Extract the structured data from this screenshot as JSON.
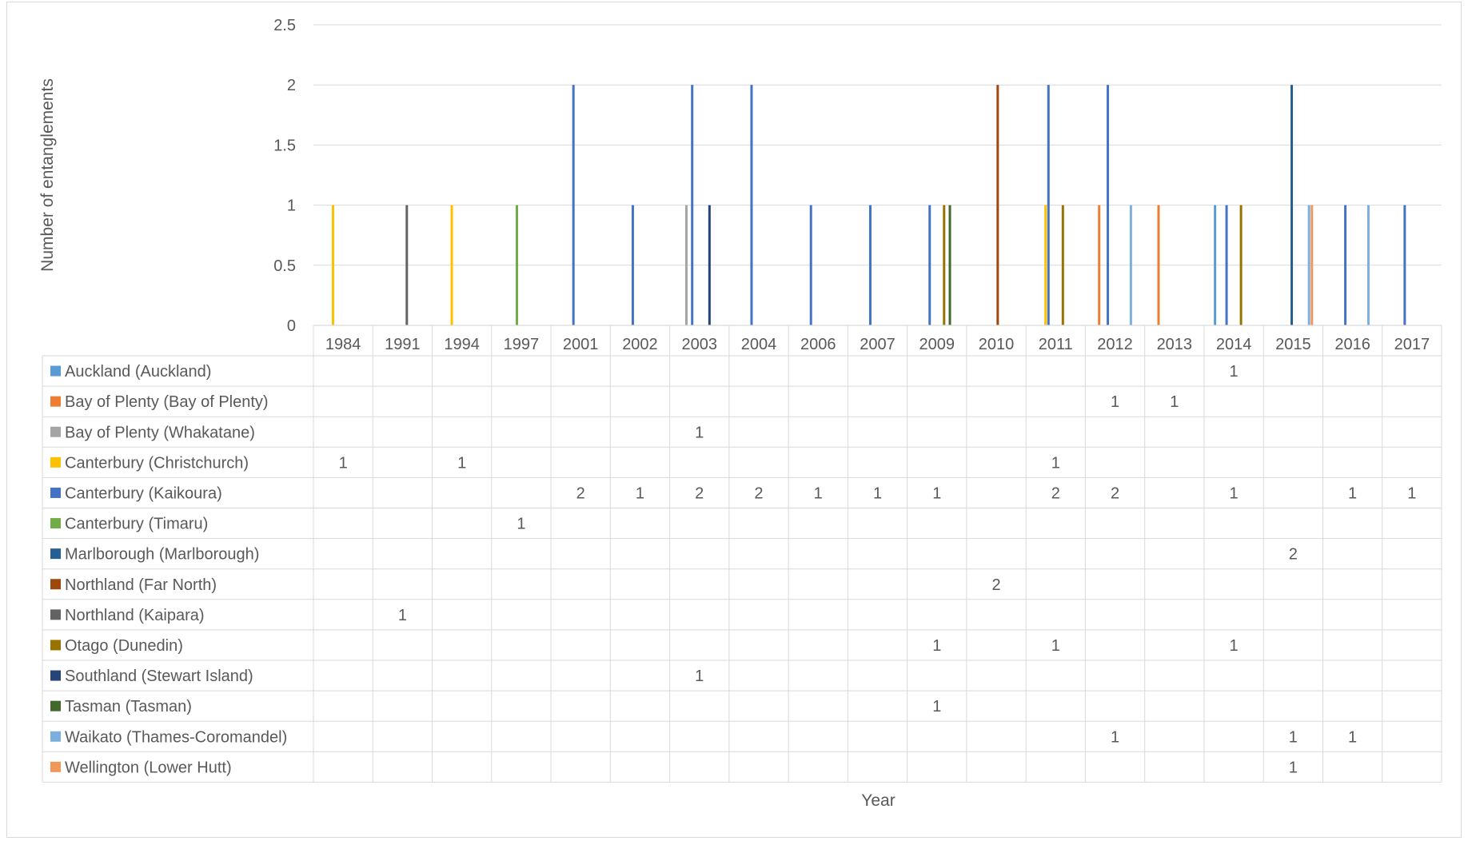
{
  "chart_data": {
    "type": "bar",
    "title": "",
    "xlabel": "Year",
    "ylabel": "Number of entanglements",
    "ylim": [
      0,
      2.5
    ],
    "yticks": [
      "0",
      "0.5",
      "1",
      "1.5",
      "2",
      "2.5"
    ],
    "grid": true,
    "legend": "data-table-below",
    "categories": [
      "1984",
      "1991",
      "1994",
      "1997",
      "2001",
      "2002",
      "2003",
      "2004",
      "2006",
      "2007",
      "2009",
      "2010",
      "2011",
      "2012",
      "2013",
      "2014",
      "2015",
      "2016",
      "2017"
    ],
    "series": [
      {
        "name": "Auckland (Auckland)",
        "color": "#5b9bd5",
        "values": [
          null,
          null,
          null,
          null,
          null,
          null,
          null,
          null,
          null,
          null,
          null,
          null,
          null,
          null,
          null,
          1,
          null,
          null,
          null
        ]
      },
      {
        "name": "Bay of Plenty (Bay of Plenty)",
        "color": "#ed7d31",
        "values": [
          null,
          null,
          null,
          null,
          null,
          null,
          null,
          null,
          null,
          null,
          null,
          null,
          null,
          1,
          1,
          null,
          null,
          null,
          null
        ]
      },
      {
        "name": "Bay of Plenty (Whakatane)",
        "color": "#a5a5a5",
        "values": [
          null,
          null,
          null,
          null,
          null,
          null,
          1,
          null,
          null,
          null,
          null,
          null,
          null,
          null,
          null,
          null,
          null,
          null,
          null
        ]
      },
      {
        "name": "Canterbury (Christchurch)",
        "color": "#ffc000",
        "values": [
          1,
          null,
          1,
          null,
          null,
          null,
          null,
          null,
          null,
          null,
          null,
          null,
          1,
          null,
          null,
          null,
          null,
          null,
          null
        ]
      },
      {
        "name": "Canterbury (Kaikoura)",
        "color": "#4472c4",
        "values": [
          null,
          null,
          null,
          null,
          2,
          1,
          2,
          2,
          1,
          1,
          1,
          null,
          2,
          2,
          null,
          1,
          null,
          1,
          1
        ]
      },
      {
        "name": "Canterbury (Timaru)",
        "color": "#70ad47",
        "values": [
          null,
          null,
          null,
          1,
          null,
          null,
          null,
          null,
          null,
          null,
          null,
          null,
          null,
          null,
          null,
          null,
          null,
          null,
          null
        ]
      },
      {
        "name": "Marlborough (Marlborough)",
        "color": "#255e91",
        "values": [
          null,
          null,
          null,
          null,
          null,
          null,
          null,
          null,
          null,
          null,
          null,
          null,
          null,
          null,
          null,
          null,
          2,
          null,
          null
        ]
      },
      {
        "name": "Northland (Far North)",
        "color": "#9e480e",
        "values": [
          null,
          null,
          null,
          null,
          null,
          null,
          null,
          null,
          null,
          null,
          null,
          2,
          null,
          null,
          null,
          null,
          null,
          null,
          null
        ]
      },
      {
        "name": "Northland (Kaipara)",
        "color": "#636363",
        "values": [
          null,
          1,
          null,
          null,
          null,
          null,
          null,
          null,
          null,
          null,
          null,
          null,
          null,
          null,
          null,
          null,
          null,
          null,
          null
        ]
      },
      {
        "name": "Otago (Dunedin)",
        "color": "#997300",
        "values": [
          null,
          null,
          null,
          null,
          null,
          null,
          null,
          null,
          null,
          null,
          1,
          null,
          1,
          null,
          null,
          1,
          null,
          null,
          null
        ]
      },
      {
        "name": "Southland (Stewart Island)",
        "color": "#264478",
        "values": [
          null,
          null,
          null,
          null,
          null,
          null,
          1,
          null,
          null,
          null,
          null,
          null,
          null,
          null,
          null,
          null,
          null,
          null,
          null
        ]
      },
      {
        "name": "Tasman (Tasman)",
        "color": "#43682b",
        "values": [
          null,
          null,
          null,
          null,
          null,
          null,
          null,
          null,
          null,
          null,
          1,
          null,
          null,
          null,
          null,
          null,
          null,
          null,
          null
        ]
      },
      {
        "name": "Waikato (Thames-Coromandel)",
        "color": "#7cafdd",
        "values": [
          null,
          null,
          null,
          null,
          null,
          null,
          null,
          null,
          null,
          null,
          null,
          null,
          null,
          1,
          null,
          null,
          1,
          1,
          null
        ]
      },
      {
        "name": "Wellington (Lower Hutt)",
        "color": "#f1975a",
        "values": [
          null,
          null,
          null,
          null,
          null,
          null,
          null,
          null,
          null,
          null,
          null,
          null,
          null,
          null,
          null,
          null,
          1,
          null,
          null
        ]
      }
    ]
  }
}
